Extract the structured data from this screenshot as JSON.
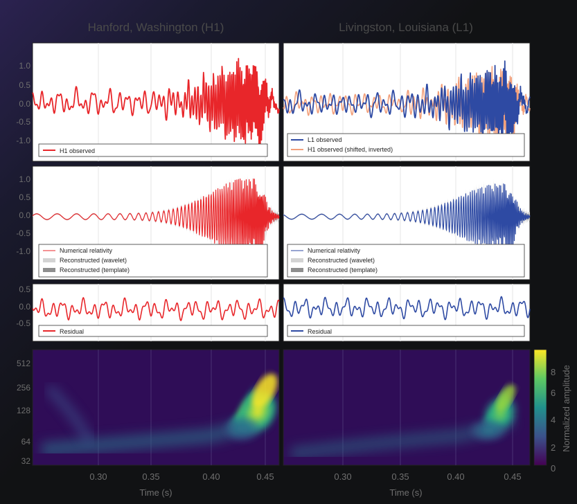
{
  "titles": {
    "left": "Hanford, Washington (H1)",
    "right": "Livingston, Louisiana (L1)"
  },
  "xlabel": "Time (s)",
  "x_ticks": [
    "0.30",
    "0.35",
    "0.40",
    "0.45"
  ],
  "colorbar": {
    "label": "Normalized amplitude",
    "ticks": [
      "0",
      "2",
      "4",
      "6",
      "8"
    ]
  },
  "chart_data": [
    {
      "type": "line",
      "panel": "H1 observed",
      "xlim": [
        0.25,
        0.46
      ],
      "ylim": [
        -1.3,
        1.4
      ],
      "y_ticks": [
        "1.0",
        "0.5",
        "0.0",
        "-0.5",
        "-1.0"
      ],
      "series": [
        {
          "name": "H1 observed",
          "color": "#e8262a"
        }
      ],
      "legend": [
        "H1 observed"
      ]
    },
    {
      "type": "line",
      "panel": "L1 observed",
      "xlim": [
        0.25,
        0.46
      ],
      "ylim": [
        -1.3,
        1.4
      ],
      "series": [
        {
          "name": "L1 observed",
          "color": "#2e4aa3"
        },
        {
          "name": "H1 observed (shifted, inverted)",
          "color": "#f2a07b"
        }
      ],
      "legend": [
        "L1 observed",
        "H1 observed (shifted, inverted)"
      ]
    },
    {
      "type": "line",
      "panel": "H1 reconstructed",
      "xlim": [
        0.25,
        0.46
      ],
      "ylim": [
        -1.3,
        1.4
      ],
      "y_ticks": [
        "1.0",
        "0.5",
        "0.0",
        "-0.5",
        "-1.0"
      ],
      "legend": [
        "Numerical relativity",
        "Reconstructed (wavelet)",
        "Reconstructed (template)"
      ]
    },
    {
      "type": "line",
      "panel": "L1 reconstructed",
      "xlim": [
        0.25,
        0.46
      ],
      "ylim": [
        -1.3,
        1.4
      ],
      "legend": [
        "Numerical relativity",
        "Reconstructed (wavelet)",
        "Reconstructed (template)"
      ]
    },
    {
      "type": "line",
      "panel": "H1 residual",
      "xlim": [
        0.25,
        0.46
      ],
      "ylim": [
        -0.6,
        0.6
      ],
      "y_ticks": [
        "0.5",
        "0.0",
        "-0.5"
      ],
      "legend": [
        "Residual"
      ]
    },
    {
      "type": "line",
      "panel": "L1 residual",
      "xlim": [
        0.25,
        0.46
      ],
      "ylim": [
        -0.6,
        0.6
      ],
      "legend": [
        "Residual"
      ]
    },
    {
      "type": "heatmap",
      "panel": "H1 time-frequency",
      "xlim": [
        0.25,
        0.46
      ],
      "y_scale": "log",
      "y_ticks": [
        "512",
        "256",
        "128",
        "64",
        "32"
      ],
      "zlim": [
        0,
        9
      ],
      "peak": {
        "x": 0.42,
        "y": 256,
        "value": 9
      }
    },
    {
      "type": "heatmap",
      "panel": "L1 time-frequency",
      "xlim": [
        0.25,
        0.46
      ],
      "y_scale": "log",
      "zlim": [
        0,
        9
      ],
      "peak": {
        "x": 0.415,
        "y": 200,
        "value": 7
      }
    }
  ],
  "colors": {
    "h1": "#e8262a",
    "l1": "#2e4aa3",
    "h1_shifted": "#f2a07b",
    "wavelet": "#d3d3d3",
    "template": "#8e8e8e",
    "tick_text": "#6f6f6f"
  }
}
